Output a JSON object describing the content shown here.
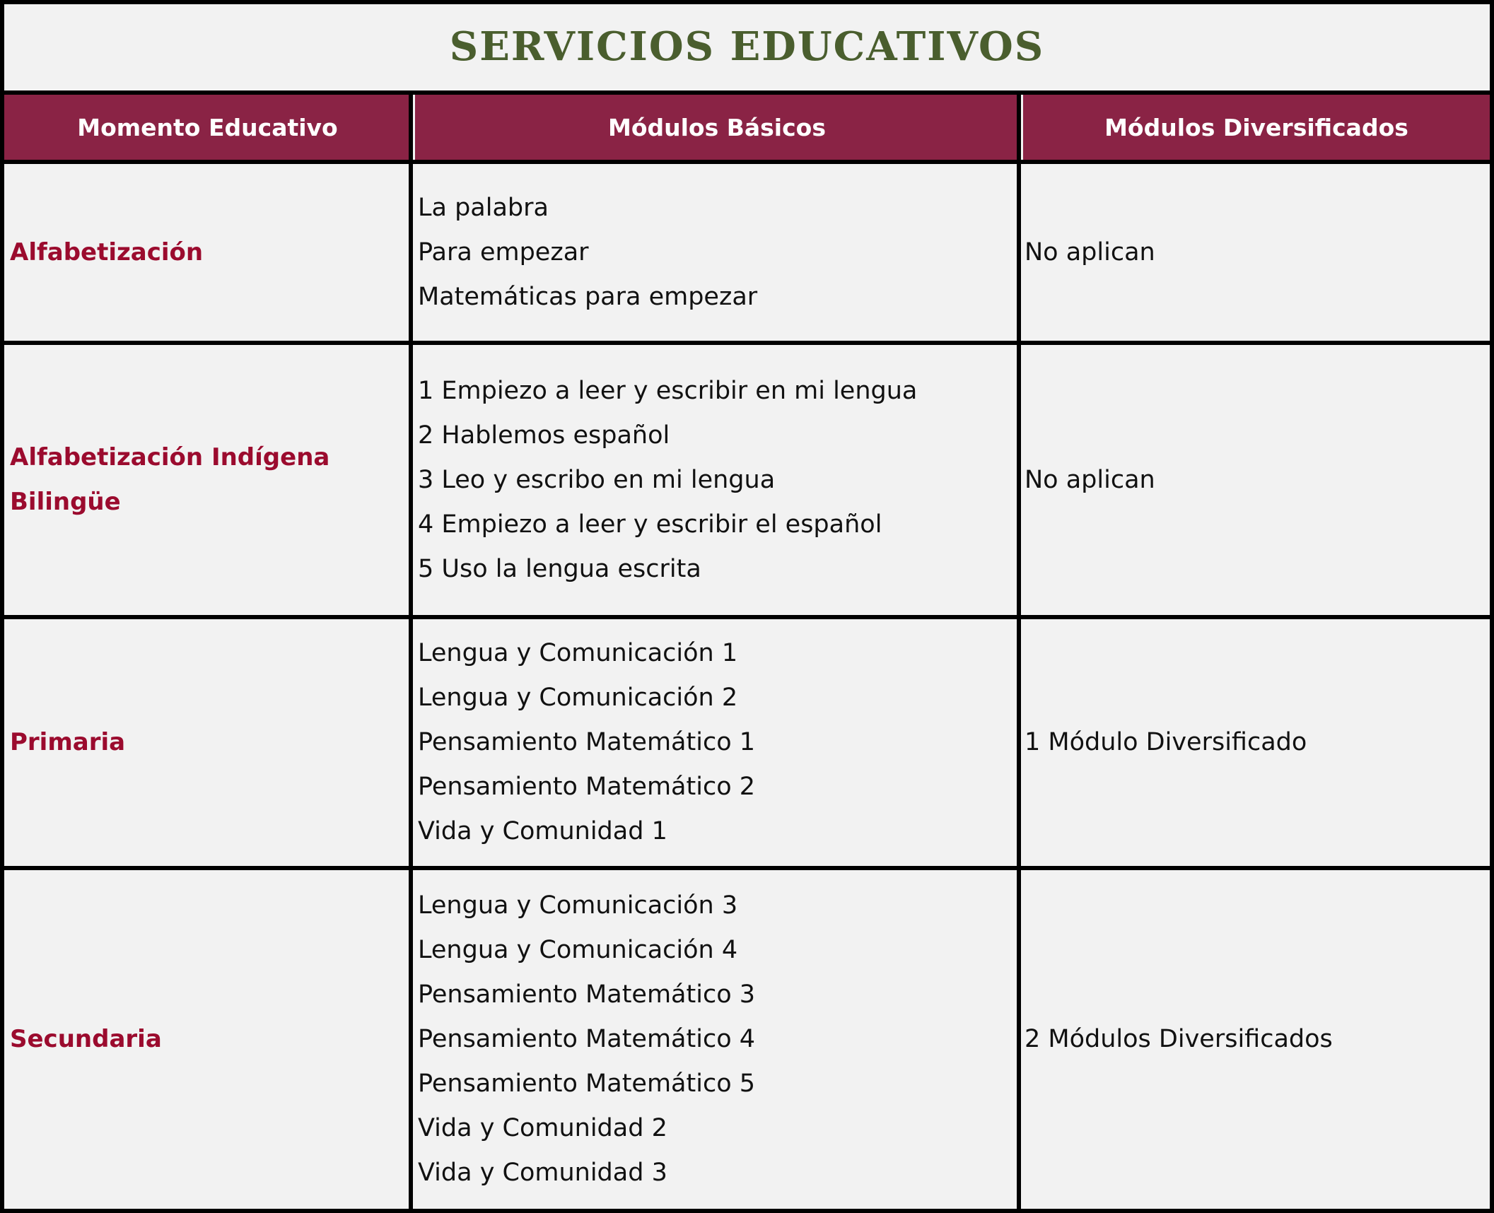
{
  "title": "SERVICIOS EDUCATIVOS",
  "colors": {
    "title": "#4a5e2e",
    "header_bg": "#8a2345",
    "moment_text": "#9b0b2e",
    "background": "#f2f2f2"
  },
  "headers": [
    "Momento Educativo",
    "Módulos Básicos",
    "Módulos Diversificados"
  ],
  "rows": [
    {
      "moment": [
        "Alfabetización"
      ],
      "basic": [
        "La palabra",
        "Para empezar",
        "Matemáticas para empezar"
      ],
      "diversified": "No aplican"
    },
    {
      "moment": [
        "Alfabetización Indígena",
        "Bilingüe"
      ],
      "basic": [
        "1 Empiezo a leer y escribir en mi lengua",
        "2 Hablemos español",
        "3 Leo y escribo en mi lengua",
        "4  Empiezo a leer y escribir el español",
        "5 Uso la lengua escrita"
      ],
      "diversified": "No aplican"
    },
    {
      "moment": [
        "Primaria"
      ],
      "basic": [
        "Lengua y Comunicación 1",
        "Lengua y Comunicación 2",
        "Pensamiento Matemático 1",
        "Pensamiento Matemático 2",
        "Vida y Comunidad 1"
      ],
      "diversified": "1 Módulo Diversificado"
    },
    {
      "moment": [
        "Secundaria"
      ],
      "basic": [
        "Lengua y Comunicación 3",
        "Lengua y Comunicación 4",
        "Pensamiento Matemático 3",
        "Pensamiento Matemático 4",
        "Pensamiento Matemático 5",
        "Vida y Comunidad 2",
        "Vida y Comunidad 3"
      ],
      "diversified": "2 Módulos Diversificados"
    }
  ]
}
